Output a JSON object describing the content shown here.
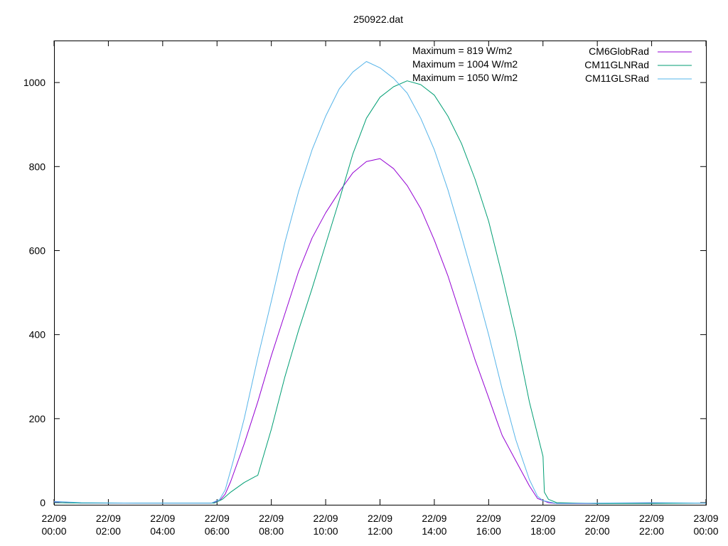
{
  "chart_data": {
    "type": "line",
    "title": "250922.dat",
    "xlabel": "",
    "ylabel": "",
    "x_unit": "hours",
    "xlim": [
      0,
      24
    ],
    "ylim": [
      -5,
      1100
    ],
    "yticks": [
      0,
      200,
      400,
      600,
      800,
      1000
    ],
    "xticks": [
      {
        "x": 0,
        "date": "22/09",
        "time": "00:00"
      },
      {
        "x": 2,
        "date": "22/09",
        "time": "02:00"
      },
      {
        "x": 4,
        "date": "22/09",
        "time": "04:00"
      },
      {
        "x": 6,
        "date": "22/09",
        "time": "06:00"
      },
      {
        "x": 8,
        "date": "22/09",
        "time": "08:00"
      },
      {
        "x": 10,
        "date": "22/09",
        "time": "10:00"
      },
      {
        "x": 12,
        "date": "22/09",
        "time": "12:00"
      },
      {
        "x": 14,
        "date": "22/09",
        "time": "14:00"
      },
      {
        "x": 16,
        "date": "22/09",
        "time": "16:00"
      },
      {
        "x": 18,
        "date": "22/09",
        "time": "18:00"
      },
      {
        "x": 20,
        "date": "22/09",
        "time": "20:00"
      },
      {
        "x": 22,
        "date": "22/09",
        "time": "22:00"
      },
      {
        "x": 24,
        "date": "23/09",
        "time": "00:00"
      }
    ],
    "annotations": [
      "Maximum = 819 W/m2",
      "Maximum = 1004 W/m2",
      "Maximum = 1050 W/m2"
    ],
    "legend_position": "top-right",
    "grid": false,
    "series": [
      {
        "name": "CM6GlobRad",
        "color": "#9400d3",
        "points": [
          [
            0,
            2
          ],
          [
            0.3,
            0
          ],
          [
            1,
            -1
          ],
          [
            3,
            -1
          ],
          [
            5,
            -1
          ],
          [
            5.8,
            -1
          ],
          [
            6.1,
            5
          ],
          [
            6.3,
            20
          ],
          [
            6.5,
            50
          ],
          [
            7,
            140
          ],
          [
            7.5,
            240
          ],
          [
            8,
            350
          ],
          [
            8.5,
            450
          ],
          [
            9,
            550
          ],
          [
            9.5,
            630
          ],
          [
            10,
            690
          ],
          [
            10.5,
            740
          ],
          [
            11,
            785
          ],
          [
            11.5,
            812
          ],
          [
            12,
            819
          ],
          [
            12.5,
            795
          ],
          [
            13,
            755
          ],
          [
            13.5,
            700
          ],
          [
            14,
            625
          ],
          [
            14.5,
            540
          ],
          [
            15,
            440
          ],
          [
            15.5,
            340
          ],
          [
            16,
            250
          ],
          [
            16.3,
            195
          ],
          [
            16.5,
            160
          ],
          [
            17,
            100
          ],
          [
            17.5,
            40
          ],
          [
            17.8,
            10
          ],
          [
            18.2,
            0
          ],
          [
            18.5,
            -2
          ],
          [
            20,
            -2
          ],
          [
            22,
            -1
          ],
          [
            24,
            -1
          ]
        ]
      },
      {
        "name": "CM11GLNRad",
        "color": "#009e73",
        "points": [
          [
            0,
            0
          ],
          [
            1,
            -1
          ],
          [
            3,
            -1
          ],
          [
            5,
            -1
          ],
          [
            5.9,
            -1
          ],
          [
            6.2,
            8
          ],
          [
            6.5,
            25
          ],
          [
            7,
            48
          ],
          [
            7.4,
            62
          ],
          [
            7.5,
            65
          ],
          [
            8,
            175
          ],
          [
            8.5,
            300
          ],
          [
            9,
            410
          ],
          [
            9.5,
            510
          ],
          [
            10,
            615
          ],
          [
            10.5,
            720
          ],
          [
            11,
            830
          ],
          [
            11.5,
            915
          ],
          [
            12,
            965
          ],
          [
            12.5,
            990
          ],
          [
            13,
            1004
          ],
          [
            13.5,
            995
          ],
          [
            14,
            970
          ],
          [
            14.5,
            920
          ],
          [
            15,
            855
          ],
          [
            15.5,
            770
          ],
          [
            16,
            670
          ],
          [
            16.5,
            540
          ],
          [
            17,
            400
          ],
          [
            17.5,
            240
          ],
          [
            18,
            110
          ],
          [
            18.05,
            25
          ],
          [
            18.2,
            8
          ],
          [
            18.5,
            0
          ],
          [
            20,
            -2
          ],
          [
            22,
            -2
          ],
          [
            24,
            -1
          ]
        ]
      },
      {
        "name": "CM11GLSRad",
        "color": "#56b4e9",
        "points": [
          [
            0,
            3
          ],
          [
            1,
            0
          ],
          [
            3,
            -1
          ],
          [
            5,
            -1
          ],
          [
            5.8,
            -1
          ],
          [
            6.1,
            8
          ],
          [
            6.3,
            30
          ],
          [
            6.6,
            100
          ],
          [
            7,
            200
          ],
          [
            7.5,
            345
          ],
          [
            8,
            480
          ],
          [
            8.5,
            620
          ],
          [
            9,
            740
          ],
          [
            9.5,
            840
          ],
          [
            10,
            920
          ],
          [
            10.5,
            985
          ],
          [
            11,
            1025
          ],
          [
            11.5,
            1050
          ],
          [
            12,
            1035
          ],
          [
            12.5,
            1010
          ],
          [
            13,
            975
          ],
          [
            13.5,
            915
          ],
          [
            14,
            840
          ],
          [
            14.5,
            745
          ],
          [
            15,
            635
          ],
          [
            15.5,
            520
          ],
          [
            16,
            400
          ],
          [
            16.5,
            270
          ],
          [
            17,
            150
          ],
          [
            17.5,
            55
          ],
          [
            17.8,
            15
          ],
          [
            18,
            5
          ],
          [
            18.5,
            -2
          ],
          [
            20,
            -1
          ],
          [
            22,
            0
          ],
          [
            24,
            -1
          ]
        ]
      }
    ]
  }
}
